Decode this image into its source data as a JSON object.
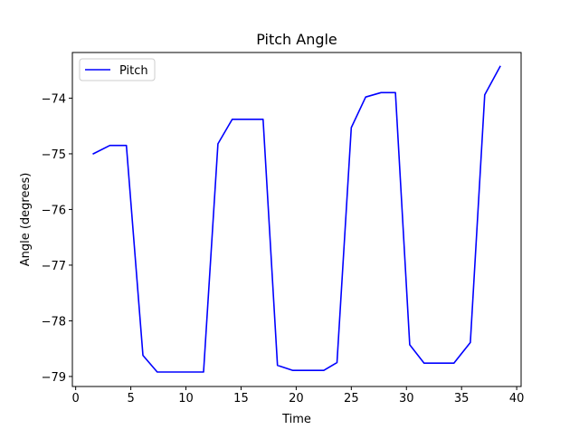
{
  "chart_data": {
    "type": "line",
    "title": "Pitch Angle",
    "xlabel": "Time",
    "ylabel": "Angle (degrees)",
    "xlim": [
      -0.3,
      40.4
    ],
    "ylim": [
      -79.18,
      -73.18
    ],
    "xticks": [
      0,
      5,
      10,
      15,
      20,
      25,
      30,
      35,
      40
    ],
    "yticks": [
      -79,
      -78,
      -77,
      -76,
      -75,
      -74
    ],
    "grid": false,
    "legend_position": "top-left",
    "series": [
      {
        "name": "Pitch",
        "color": "#0000ff",
        "x": [
          1.6,
          3.1,
          4.6,
          6.1,
          7.4,
          8.9,
          10.3,
          11.6,
          12.9,
          14.2,
          15.6,
          17.0,
          18.3,
          19.7,
          21.1,
          22.5,
          23.7,
          25.0,
          26.3,
          27.7,
          29.0,
          30.3,
          31.6,
          33.0,
          34.3,
          35.8,
          37.1,
          38.5
        ],
        "y": [
          -75.0,
          -74.85,
          -74.85,
          -78.62,
          -78.92,
          -78.92,
          -78.92,
          -78.92,
          -74.82,
          -74.38,
          -74.38,
          -74.38,
          -78.8,
          -78.89,
          -78.89,
          -78.89,
          -78.75,
          -74.53,
          -73.98,
          -73.9,
          -73.9,
          -78.43,
          -78.76,
          -78.76,
          -78.76,
          -78.39,
          -73.94,
          -73.43
        ]
      }
    ]
  }
}
